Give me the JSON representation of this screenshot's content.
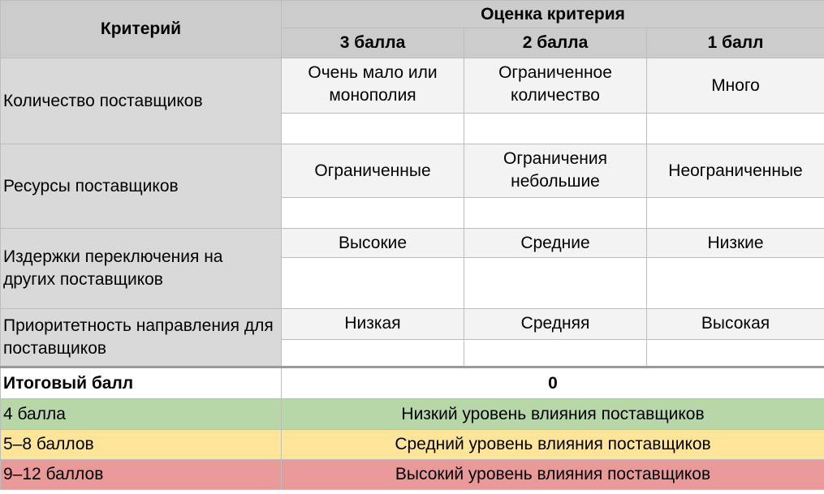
{
  "header": {
    "criterion": "Критерий",
    "assessment": "Оценка критерия",
    "scores": [
      "3 балла",
      "2 балла",
      "1 балл"
    ]
  },
  "criteria": [
    {
      "name": "Количество поставщиков",
      "options": [
        "Очень мало или монополия",
        "Ограниченное количество",
        "Много"
      ]
    },
    {
      "name": "Ресурсы поставщиков",
      "options": [
        "Ограниченные",
        "Ограничения небольшие",
        "Неограниченные"
      ]
    },
    {
      "name": "Издержки переключения на других поставщиков",
      "options": [
        "Высокие",
        "Средние",
        "Низкие"
      ]
    },
    {
      "name": "Приоритетность направления для поставщиков",
      "options": [
        "Низкая",
        "Средняя",
        "Высокая"
      ]
    }
  ],
  "total": {
    "label": "Итоговый балл",
    "value": "0"
  },
  "levels": [
    {
      "range": "4 балла",
      "text": "Низкий уровень влияния поставщиков",
      "color": "#b7d7a8"
    },
    {
      "range": "5–8 баллов",
      "text": "Средний уровень влияния поставщиков",
      "color": "#ffe599"
    },
    {
      "range": "9–12 баллов",
      "text": "Высокий уровень влияния поставщиков",
      "color": "#ea9999"
    }
  ]
}
